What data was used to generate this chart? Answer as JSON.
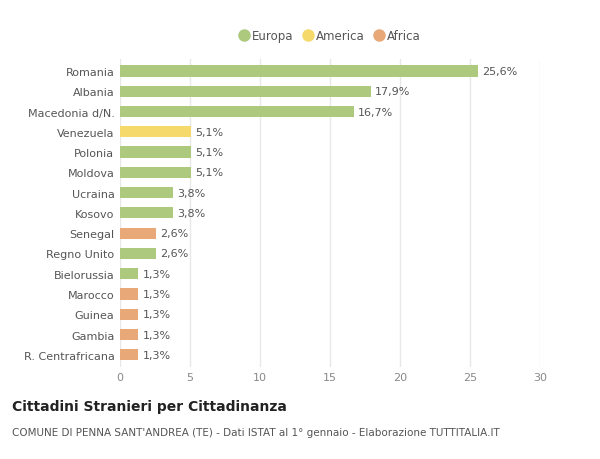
{
  "categories": [
    "Romania",
    "Albania",
    "Macedonia d/N.",
    "Venezuela",
    "Polonia",
    "Moldova",
    "Ucraina",
    "Kosovo",
    "Senegal",
    "Regno Unito",
    "Bielorussia",
    "Marocco",
    "Guinea",
    "Gambia",
    "R. Centrafricana"
  ],
  "values": [
    25.6,
    17.9,
    16.7,
    5.1,
    5.1,
    5.1,
    3.8,
    3.8,
    2.6,
    2.6,
    1.3,
    1.3,
    1.3,
    1.3,
    1.3
  ],
  "labels": [
    "25,6%",
    "17,9%",
    "16,7%",
    "5,1%",
    "5,1%",
    "5,1%",
    "3,8%",
    "3,8%",
    "2,6%",
    "2,6%",
    "1,3%",
    "1,3%",
    "1,3%",
    "1,3%",
    "1,3%"
  ],
  "colors": [
    "#adc97e",
    "#adc97e",
    "#adc97e",
    "#f5d96b",
    "#adc97e",
    "#adc97e",
    "#adc97e",
    "#adc97e",
    "#e8a878",
    "#adc97e",
    "#adc97e",
    "#e8a878",
    "#e8a878",
    "#e8a878",
    "#e8a878"
  ],
  "legend_labels": [
    "Europa",
    "America",
    "Africa"
  ],
  "legend_colors": [
    "#adc97e",
    "#f5d96b",
    "#e8a878"
  ],
  "title": "Cittadini Stranieri per Cittadinanza",
  "subtitle": "COMUNE DI PENNA SANT'ANDREA (TE) - Dati ISTAT al 1° gennaio - Elaborazione TUTTITALIA.IT",
  "xlim": [
    0,
    30
  ],
  "xticks": [
    0,
    5,
    10,
    15,
    20,
    25,
    30
  ],
  "background_color": "#ffffff",
  "plot_bg_color": "#ffffff",
  "grid_color": "#e8e8e8",
  "label_fontsize": 8,
  "tick_fontsize": 8,
  "title_fontsize": 10,
  "subtitle_fontsize": 7.5
}
